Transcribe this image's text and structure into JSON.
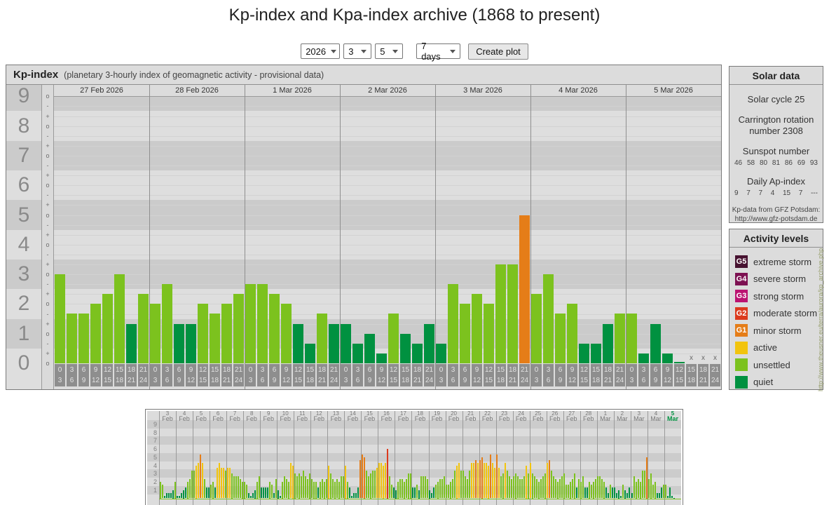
{
  "page": {
    "title": "Kp-index and Kpa-index archive (1868 to present)"
  },
  "controls": {
    "year": "2026",
    "month": "3",
    "day": "5",
    "range": "7 days",
    "create_button": "Create plot"
  },
  "kp_colors": {
    "quiet": "#009140",
    "unsettled": "#7cc21e",
    "active": "#f2c40e",
    "g1": "#e57d18",
    "g2": "#dc3a1d",
    "g3": "#bb1371",
    "g4": "#7d1152",
    "g5": "#471230"
  },
  "main_chart": {
    "title": "Kp-index",
    "subtitle": "(planetary 3-hourly index of geomagnetic activity - provisional data)",
    "y_labels": [
      "9",
      "8",
      "7",
      "6",
      "5",
      "4",
      "3",
      "2",
      "1",
      "0"
    ],
    "no_data_marker": "x",
    "hour_pairs": [
      [
        "0",
        "3"
      ],
      [
        "3",
        "6"
      ],
      [
        "6",
        "9"
      ],
      [
        "9",
        "12"
      ],
      [
        "12",
        "15"
      ],
      [
        "15",
        "18"
      ],
      [
        "18",
        "21"
      ],
      [
        "21",
        "24"
      ]
    ],
    "days": [
      {
        "date": "27 Feb 2026",
        "kp": [
          3.0,
          1.67,
          1.67,
          2.0,
          2.33,
          3.0,
          1.33,
          2.33
        ]
      },
      {
        "date": "28 Feb 2026",
        "kp": [
          2.0,
          2.67,
          1.33,
          1.33,
          2.0,
          1.67,
          2.0,
          2.33
        ]
      },
      {
        "date": "1 Mar 2026",
        "kp": [
          2.67,
          2.67,
          2.33,
          2.0,
          1.33,
          0.67,
          1.67,
          1.33
        ]
      },
      {
        "date": "2 Mar 2026",
        "kp": [
          1.33,
          0.67,
          1.0,
          0.33,
          1.67,
          1.0,
          0.67,
          1.33
        ]
      },
      {
        "date": "3 Mar 2026",
        "kp": [
          0.67,
          2.67,
          2.0,
          2.33,
          2.0,
          3.33,
          3.33,
          5.0
        ]
      },
      {
        "date": "4 Mar 2026",
        "kp": [
          2.33,
          3.0,
          1.67,
          2.0,
          0.67,
          0.67,
          1.33,
          1.67
        ]
      },
      {
        "date": "5 Mar 2026",
        "kp": [
          1.67,
          0.33,
          1.33,
          0.33,
          0.05,
          null,
          null,
          null
        ]
      }
    ]
  },
  "solar_data": {
    "title": "Solar data",
    "cycle": "Solar cycle 25",
    "carrington": "Carrington rotation number 2308",
    "sunspot_label": "Sunspot number",
    "sunspot_values": [
      "46",
      "58",
      "80",
      "81",
      "86",
      "69",
      "93"
    ],
    "ap_label": "Daily Ap-index",
    "ap_values": [
      "9",
      "7",
      "7",
      "4",
      "15",
      "7",
      "---"
    ],
    "note_line1": "Kp-data from GFZ Potsdam:",
    "note_line2": "http://www.gfz-potsdam.de"
  },
  "activity_levels": {
    "title": "Activity levels",
    "items": [
      {
        "badge": "G5",
        "label": "extreme storm",
        "color": "#471230"
      },
      {
        "badge": "G4",
        "label": "severe storm",
        "color": "#7d1152"
      },
      {
        "badge": "G3",
        "label": "strong storm",
        "color": "#bb1371"
      },
      {
        "badge": "G2",
        "label": "moderate storm",
        "color": "#dc3a1d"
      },
      {
        "badge": "G1",
        "label": "minor storm",
        "color": "#e57d18"
      },
      {
        "badge": "",
        "label": "active",
        "color": "#f2c40e"
      },
      {
        "badge": "",
        "label": "unsettled",
        "color": "#7cc21e"
      },
      {
        "badge": "",
        "label": "quiet",
        "color": "#009140"
      }
    ]
  },
  "watermark": "http://www.theusner.eu/terra/aurora/kp_archive.php",
  "mini_chart": {
    "y_labels": [
      "9",
      "8",
      "7",
      "6",
      "5",
      "4",
      "3",
      "2",
      "1"
    ],
    "highlight_label_color": "#009140",
    "days": [
      {
        "day": "3",
        "month": "Feb",
        "kp": [
          2,
          1.67,
          0.33,
          0.67,
          0.67,
          0.67,
          1,
          2
        ]
      },
      {
        "day": "4",
        "month": "Feb",
        "kp": [
          0.33,
          0.33,
          0.67,
          1,
          1.33,
          2,
          2.33,
          3.33
        ]
      },
      {
        "day": "5",
        "month": "Feb",
        "kp": [
          3.33,
          4,
          4.33,
          5.33,
          4.33,
          2.33,
          1.33,
          1.33
        ]
      },
      {
        "day": "6",
        "month": "Feb",
        "kp": [
          1.67,
          2,
          1.33,
          3.67,
          4.33,
          3.67,
          3.67,
          3.33
        ]
      },
      {
        "day": "7",
        "month": "Feb",
        "kp": [
          3.67,
          3.67,
          3,
          2.67,
          2.67,
          2.67,
          2.33,
          2
        ]
      },
      {
        "day": "8",
        "month": "Feb",
        "kp": [
          2,
          1.67,
          0.67,
          0.33,
          0.67,
          1,
          2,
          2.67
        ]
      },
      {
        "day": "9",
        "month": "Feb",
        "kp": [
          1.33,
          1.33,
          1.33,
          1.33,
          2,
          1.67,
          0.67,
          2.33
        ]
      },
      {
        "day": "10",
        "month": "Feb",
        "kp": [
          1,
          0.33,
          2,
          2.67,
          2.33,
          2,
          4.33,
          4
        ]
      },
      {
        "day": "11",
        "month": "Feb",
        "kp": [
          3,
          2.67,
          3,
          2.67,
          3.33,
          2.67,
          2.33,
          3
        ]
      },
      {
        "day": "12",
        "month": "Feb",
        "kp": [
          2.33,
          2,
          2,
          1.33,
          2,
          2.33,
          2,
          2.33
        ]
      },
      {
        "day": "13",
        "month": "Feb",
        "kp": [
          4,
          3,
          2.33,
          2,
          2.33,
          2,
          2.67,
          2.67
        ]
      },
      {
        "day": "14",
        "month": "Feb",
        "kp": [
          4,
          2,
          1.33,
          0.33,
          0.67,
          0.67,
          1.33,
          4.67
        ]
      },
      {
        "day": "15",
        "month": "Feb",
        "kp": [
          5.33,
          5,
          3.33,
          2.67,
          3,
          3.33,
          3.33,
          3.67
        ]
      },
      {
        "day": "16",
        "month": "Feb",
        "kp": [
          4.33,
          4.33,
          4,
          4.33,
          6,
          2.67,
          1.67,
          1.33
        ]
      },
      {
        "day": "17",
        "month": "Feb",
        "kp": [
          1,
          2,
          2.33,
          2.33,
          2,
          2.33,
          3,
          3
        ]
      },
      {
        "day": "18",
        "month": "Feb",
        "kp": [
          1.33,
          1.33,
          1.67,
          1,
          2.67,
          2.67,
          2.67,
          2.33
        ]
      },
      {
        "day": "19",
        "month": "Feb",
        "kp": [
          1,
          0.67,
          1.33,
          1.67,
          2,
          2.33,
          2.33,
          2.67
        ]
      },
      {
        "day": "20",
        "month": "Feb",
        "kp": [
          1.67,
          1.67,
          2,
          2.33,
          3.33,
          4,
          4.33,
          3.33
        ]
      },
      {
        "day": "21",
        "month": "Feb",
        "kp": [
          3.33,
          2.67,
          2.33,
          3.33,
          4.33,
          4.33,
          4.67,
          4.33
        ]
      },
      {
        "day": "22",
        "month": "Feb",
        "kp": [
          4.67,
          5,
          4.33,
          4.33,
          4,
          5.33,
          4.33,
          3.67
        ]
      },
      {
        "day": "23",
        "month": "Feb",
        "kp": [
          5.33,
          3.67,
          2.67,
          3,
          4.33,
          3.33,
          2.67,
          2.33
        ]
      },
      {
        "day": "24",
        "month": "Feb",
        "kp": [
          2.67,
          3,
          2.67,
          2.33,
          2.33,
          2.67,
          4,
          3
        ]
      },
      {
        "day": "25",
        "month": "Feb",
        "kp": [
          4.33,
          3,
          2.67,
          2.33,
          2,
          2.33,
          2.67,
          3
        ]
      },
      {
        "day": "26",
        "month": "Feb",
        "kp": [
          4.33,
          4.67,
          3.33,
          2.67,
          2.33,
          2,
          2.33,
          2.67
        ]
      },
      {
        "day": "27",
        "month": "Feb",
        "kp": [
          3,
          1.67,
          1.67,
          2,
          2.33,
          3,
          1.33,
          2.33
        ]
      },
      {
        "day": "28",
        "month": "Feb",
        "kp": [
          2,
          2.67,
          1.33,
          1.33,
          2,
          1.67,
          2,
          2.33
        ]
      },
      {
        "day": "1",
        "month": "Mar",
        "kp": [
          2.67,
          2.67,
          2.33,
          2,
          1.33,
          0.67,
          1.67,
          1.33
        ]
      },
      {
        "day": "2",
        "month": "Mar",
        "kp": [
          1.33,
          0.67,
          1,
          0.33,
          1.67,
          1,
          0.67,
          1.33
        ]
      },
      {
        "day": "3",
        "month": "Mar",
        "kp": [
          0.67,
          2.67,
          2,
          2.33,
          2,
          3.33,
          3.33,
          5
        ]
      },
      {
        "day": "4",
        "month": "Mar",
        "kp": [
          2.33,
          3,
          1.67,
          2,
          0.67,
          0.67,
          1.33,
          1.67
        ]
      },
      {
        "day": "5",
        "month": "Mar",
        "kp": [
          1.67,
          0.33,
          1.33,
          0.33,
          0.05
        ],
        "highlight": true
      }
    ]
  }
}
